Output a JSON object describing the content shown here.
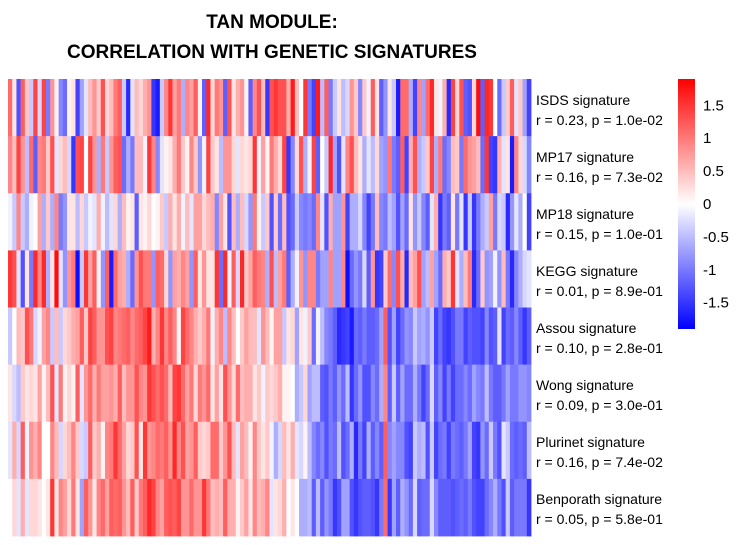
{
  "chart_data": {
    "type": "heatmap",
    "title_lines": [
      "TAN MODULE:",
      "CORRELATION WITH GENETIC SIGNATURES"
    ],
    "rows": [
      {
        "name": "ISDS signature",
        "stats": "r = 0.23, p = 1.0e-02"
      },
      {
        "name": "MP17 signature",
        "stats": "r = 0.16, p = 7.3e-02"
      },
      {
        "name": "MP18 signature",
        "stats": "r = 0.15, p = 1.0e-01"
      },
      {
        "name": "KEGG signature",
        "stats": "r = 0.01, p = 8.9e-01"
      },
      {
        "name": "Assou signature",
        "stats": "r = 0.10, p = 2.8e-01"
      },
      {
        "name": "Wong signature",
        "stats": "r = 0.09, p = 3.0e-01"
      },
      {
        "name": "Plurinet signature",
        "stats": "r = 0.16, p = 7.4e-02"
      },
      {
        "name": "Benporath signature",
        "stats": "r = 0.05, p = 5.8e-01"
      }
    ],
    "n_columns": 124,
    "color_scale": {
      "min": -1.9,
      "max": 1.9,
      "low": "#0000ff",
      "mid": "#ffffff",
      "high": "#ff0000",
      "ticks": [
        "1.5",
        "1",
        "0.5",
        "0",
        "-0.5",
        "-1",
        "-1.5"
      ],
      "tick_values": [
        1.5,
        1,
        0.5,
        0,
        -0.5,
        -1,
        -1.5
      ]
    },
    "values": [
      [
        1.1,
        0.2,
        -1.3,
        1.2,
        0.4,
        -0.4,
        1.4,
        -0.3,
        1.4,
        -1.0,
        0.8,
        0.1,
        -0.9,
        -1.1,
        0.1,
        0.2,
        -1.4,
        -0.7,
        -0.2,
        0.5,
        0.8,
        0.4,
        1.3,
        0.3,
        0.5,
        1.0,
        1.2,
        -0.4,
        -1.6,
        -0.2,
        0.5,
        0.3,
        0.6,
        0.8,
        -1.5,
        -1.7,
        -0.4,
        0.9,
        1.5,
        0.7,
        1.0,
        -0.6,
        0.9,
        0.7,
        1.2,
        0.1,
        -1.2,
        1.6,
        0.3,
        1.0,
        0.8,
        -1.2,
        1.3,
        0.2,
        0.6,
        0.8,
        0.1,
        -1.2,
        0.9,
        1.3,
        0.5,
        -1.5,
        1.3,
        1.5,
        1.3,
        1.3,
        0.6,
        1.7,
        0.5,
        0.0,
        1.5,
        -1.0,
        -1.4,
        1.7,
        -0.5,
        1.2,
        -1.0,
        -0.4,
        0.2,
        -0.5,
        -0.3,
        0.8,
        0.4,
        -0.9,
        0.4,
        -0.1,
        1.2,
        0.2,
        -1.2,
        -0.8,
        0.2,
        -0.4,
        -1.7,
        1.1,
        1.1,
        -0.6,
        -1.4,
        0.9,
        -0.7,
        1.1,
        1.6,
        0.2,
        -0.1,
        0.6,
        -1.6,
        1.4,
        0.3,
        1.3,
        -1.2,
        -1.3,
        0.3,
        1.8,
        -1.2,
        1.6,
        1.5,
        0.0,
        -1.1,
        -0.4,
        0.4,
        1.2,
        -0.2,
        0.4,
        -0.7,
        -1.4
      ],
      [
        0.9,
        0.5,
        1.4,
        0.8,
        -0.5,
        1.1,
        -1.2,
        0.9,
        1.0,
        0.4,
        1.3,
        -0.2,
        0.3,
        0.5,
        -0.3,
        -1.5,
        1.3,
        1.4,
        0.0,
        1.4,
        0.8,
        -0.6,
        1.0,
        -0.4,
        0.8,
        1.2,
        1.3,
        -1.1,
        -0.6,
        -1.0,
        0.5,
        0.5,
        -0.1,
        1.5,
        0.9,
        -0.9,
        -0.2,
        0.1,
        0.2,
        0.6,
        1.0,
        0.4,
        0.1,
        0.9,
        0.4,
        -0.8,
        -0.1,
        1.4,
        0.4,
        0.2,
        -0.5,
        0.8,
        0.8,
        0.3,
        -0.2,
        0.3,
        0.2,
        0.3,
        1.5,
        -0.1,
        0.7,
        0.1,
        1.0,
        0.6,
        0.3,
        1.4,
        -1.5,
        -0.9,
        0.3,
        1.3,
        -0.6,
        -0.1,
        1.4,
        -1.2,
        0.0,
        -0.4,
        1.6,
        -0.7,
        -1.3,
        -0.2,
        0.9,
        1.3,
        0.5,
        0.2,
        -0.6,
        -0.2,
        -0.5,
        0.3,
        -0.7,
        -0.8,
        1.0,
        -1.0,
        -1.2,
        1.2,
        -1.4,
        0.6,
        1.3,
        -0.6,
        -0.4,
        0.4,
        1.4,
        -0.6,
        1.0,
        -1.1,
        -0.9,
        0.5,
        0.4,
        -1.0,
        1.1,
        0.8,
        0.7,
        0.5,
        -1.1,
        1.5,
        -1.4,
        -1.5,
        0.6,
        -0.2,
        0.2,
        -1.7,
        0.9,
        0.3,
        -0.3,
        -0.9
      ],
      [
        -0.1,
        -0.4,
        0.9,
        -0.4,
        -0.6,
        -0.1,
        0.0,
        0.7,
        -0.6,
        0.4,
        -0.6,
        0.9,
        -1.0,
        -0.8,
        0.2,
        0.2,
        -0.5,
        0.3,
        -0.4,
        -0.1,
        -0.2,
        0.6,
        -0.1,
        -0.5,
        -0.2,
        0.3,
        -0.6,
        0.5,
        0.1,
        0.2,
        -1.2,
        0.2,
        0.1,
        0.3,
        0.0,
        0.1,
        0.4,
        -0.4,
        0.6,
        0.2,
        0.6,
        -0.1,
        0.5,
        -0.2,
        0.7,
        0.7,
        0.3,
        0.5,
        0.6,
        -0.9,
        0.7,
        0.2,
        -1.3,
        0.5,
        -0.6,
        0.5,
        -0.3,
        -0.8,
        1.0,
        0.1,
        -0.4,
        0.4,
        -1.3,
        0.4,
        -1.1,
        0.5,
        -1.3,
        -1.1,
        -0.4,
        -0.9,
        -1.0,
        -0.9,
        -1.1,
        0.9,
        -0.2,
        -1.3,
        0.6,
        -0.7,
        -0.7,
        0.8,
        -1.4,
        -0.6,
        -0.6,
        -0.3,
        -0.9,
        -1.4,
        -1.0,
        0.5,
        -0.9,
        -1.0,
        -0.5,
        -0.7,
        -1.3,
        -0.7,
        -1.1,
        0.2,
        -0.8,
        -0.4,
        -0.9,
        -1.2,
        -0.2,
        0.6,
        -1.5,
        -1.0,
        -1.2,
        0.2,
        -1.0,
        -0.2,
        -1.5,
        -0.4,
        -1.5,
        -1.0,
        -0.6,
        -0.4,
        0.7,
        -1.0,
        -0.3,
        -0.4,
        -1.6,
        -0.8,
        -0.2,
        -0.6,
        0.0,
        -1.4
      ],
      [
        1.5,
        1.3,
        -0.2,
        -1.3,
        0.2,
        -1.0,
        1.6,
        0.9,
        1.6,
        -0.6,
        0.2,
        1.8,
        -0.2,
        -0.8,
        0.8,
        1.0,
        -1.8,
        -0.4,
        1.5,
        0.7,
        1.2,
        0.1,
        -0.8,
        1.2,
        -1.7,
        1.1,
        0.7,
        0.6,
        -0.6,
        -1.1,
        0.8,
        1.3,
        1.0,
        1.0,
        -0.8,
        1.2,
        1.1,
        0.3,
        -0.8,
        0.7,
        0.6,
        0.9,
        0.7,
        -0.8,
        1.2,
        0.2,
        0.8,
        0.2,
        0.2,
        1.5,
        -1.1,
        1.6,
        -0.1,
        1.2,
        -0.3,
        1.6,
        0.4,
        0.7,
        1.2,
        1.0,
        0.9,
        -0.6,
        1.3,
        -0.5,
        0.7,
        1.0,
        -1.2,
        -0.6,
        -0.1,
        0.8,
        -0.8,
        0.9,
        0.9,
        -1.0,
        -0.7,
        -0.7,
        0.9,
        -0.7,
        -0.7,
        0.9,
        -1.8,
        -1.1,
        -0.8,
        -1.0,
        -0.3,
        -1.2,
        0.8,
        -1.5,
        -1.4,
        0.4,
        1.1,
        -0.9,
        1.3,
        0.6,
        -1.6,
        0.5,
        0.7,
        1.3,
        -0.7,
        -0.5,
        0.7,
        -0.7,
        -1.1,
        0.6,
        0.4,
        1.5,
        -0.2,
        -0.6,
        0.5,
        1.0,
        -1.6,
        -1.1,
        0.4,
        -0.8,
        -0.7,
        -0.1,
        -0.8,
        0.5,
        -1.0,
        -1.6,
        -0.9,
        -0.6,
        -0.3,
        -0.2
      ],
      [
        -0.4,
        0.0,
        0.5,
        0.4,
        1.3,
        1.0,
        -0.3,
        -0.1,
        0.7,
        0.9,
        -0.4,
        0.5,
        -0.4,
        0.3,
        0.4,
        0.6,
        0.7,
        1.2,
        0.4,
        1.4,
        1.2,
        0.8,
        0.8,
        1.3,
        1.4,
        0.9,
        1.0,
        1.1,
        1.2,
        0.9,
        1.1,
        1.2,
        1.4,
        1.7,
        0.6,
        0.9,
        1.5,
        0.9,
        1.2,
        0.9,
        0.1,
        1.4,
        1.1,
        0.9,
        0.6,
        0.4,
        0.6,
        1.0,
        -0.1,
        0.6,
        0.9,
        -0.5,
        0.9,
        0.5,
        0.0,
        0.4,
        0.7,
        0.5,
        0.5,
        -0.2,
        0.8,
        0.5,
        0.1,
        0.7,
        0.7,
        -0.4,
        0.2,
        0.3,
        -0.7,
        0.2,
        -0.1,
        0.4,
        -1.1,
        -0.1,
        -0.5,
        -0.9,
        -1.0,
        -1.2,
        -1.6,
        -1.5,
        -1.4,
        -1.7,
        -1.1,
        -1.2,
        -1.0,
        -1.2,
        -1.2,
        -1.1,
        -0.7,
        1.2,
        -1.3,
        -0.7,
        -1.4,
        -1.1,
        -0.8,
        -0.9,
        -0.4,
        -0.7,
        -0.6,
        -0.8,
        -0.4,
        -1.4,
        -1.1,
        -1.4,
        -1.5,
        -1.3,
        -1.0,
        -1.0,
        -1.4,
        -1.2,
        -1.3,
        -1.3,
        -1.4,
        -0.9,
        -1.3,
        -1.2,
        -0.2,
        -1.4,
        -1.1,
        -1.2,
        -0.9,
        -1.2,
        -1.5,
        -1.2
      ],
      [
        0.2,
        -0.3,
        -0.5,
        0.4,
        0.2,
        0.3,
        0.2,
        0.7,
        0.1,
        0.5,
        1.3,
        -0.2,
        1.0,
        0.1,
        0.3,
        0.1,
        1.2,
        -0.2,
        0.8,
        1.1,
        0.6,
        1.0,
        0.7,
        0.7,
        0.8,
        0.6,
        1.2,
        0.5,
        0.8,
        0.8,
        1.3,
        0.9,
        0.8,
        1.5,
        1.3,
        1.1,
        1.3,
        1.1,
        0.5,
        1.4,
        1.5,
        1.1,
        0.7,
        1.0,
        0.3,
        1.0,
        0.8,
        1.1,
        0.2,
        0.7,
        0.2,
        1.3,
        0.8,
        0.3,
        1.1,
        0.5,
        0.6,
        0.6,
        0.2,
        0.4,
        -0.1,
        0.4,
        0.3,
        0.4,
        0.6,
        0.1,
        0.1,
        0.0,
        -0.6,
        -0.4,
        0.3,
        -0.7,
        -0.5,
        -0.5,
        -1.2,
        -1.3,
        -1.0,
        -1.2,
        -0.8,
        -1.1,
        -0.5,
        -1.5,
        -1.1,
        -0.8,
        -1.3,
        -1.3,
        -0.9,
        -1.1,
        -0.6,
        0.9,
        -1.2,
        -0.4,
        -1.2,
        -0.7,
        -1.1,
        -1.1,
        -0.6,
        -1.0,
        -1.4,
        -1.1,
        -0.3,
        -1.2,
        -0.9,
        -1.4,
        -1.0,
        -1.4,
        -1.1,
        -1.1,
        -0.9,
        -1.1,
        -0.7,
        -0.9,
        -1.0,
        -0.5,
        -1.0,
        -1.2,
        -1.2,
        -1.0,
        -0.7,
        -1.0,
        -1.0,
        -0.8,
        -0.8,
        -0.9
      ],
      [
        -0.2,
        0.6,
        -0.3,
        1.2,
        -0.1,
        0.8,
        0.6,
        0.9,
        0.0,
        0.0,
        0.9,
        0.5,
        -0.3,
        0.3,
        0.5,
        0.9,
        0.4,
        -0.3,
        -0.4,
        1.2,
        0.4,
        0.6,
        0.1,
        0.9,
        1.0,
        1.5,
        1.1,
        0.7,
        0.3,
        0.4,
        1.3,
        0.2,
        1.5,
        0.8,
        0.9,
        1.1,
        1.0,
        1.2,
        0.8,
        1.6,
        0.9,
        1.3,
        0.7,
        0.8,
        1.2,
        0.4,
        0.3,
        0.4,
        1.1,
        1.1,
        0.4,
        0.8,
        1.3,
        0.5,
        -0.2,
        0.7,
        0.5,
        0.1,
        0.9,
        0.4,
        0.2,
        0.4,
        -0.1,
        -0.6,
        -0.3,
        0.5,
        0.2,
        0.6,
        -0.2,
        -0.3,
        0.1,
        -0.5,
        -0.9,
        -1.1,
        -0.9,
        -1.3,
        -1.0,
        -1.1,
        -0.5,
        -1.3,
        -1.1,
        -0.6,
        -1.6,
        -1.0,
        -1.4,
        -0.6,
        -1.2,
        -0.9,
        -1.2,
        1.2,
        -0.9,
        -0.7,
        -0.9,
        -0.9,
        -1.3,
        -1.4,
        -0.4,
        -0.6,
        -0.5,
        -1.3,
        -0.4,
        -1.4,
        -1.1,
        -1.0,
        -1.4,
        -1.0,
        -1.1,
        -1.2,
        -1.0,
        -0.7,
        -1.4,
        -1.5,
        -0.8,
        -1.1,
        -0.4,
        -1.0,
        -1.3,
        -0.2,
        -0.4,
        -1.1,
        -1.2,
        -1.1,
        -1.2,
        -0.5
      ],
      [
        0.0,
        0.3,
        -0.2,
        0.6,
        -0.2,
        0.3,
        0.3,
        0.2,
        0.0,
        0.2,
        1.5,
        0.2,
        0.9,
        0.7,
        0.3,
        1.0,
        0.2,
        -0.7,
        1.2,
        0.8,
        0.2,
        0.9,
        1.1,
        0.7,
        1.2,
        1.1,
        1.2,
        0.8,
        0.5,
        1.2,
        0.4,
        1.0,
        1.2,
        1.6,
        1.4,
        0.9,
        0.7,
        1.2,
        1.3,
        1.2,
        1.4,
        0.8,
        0.8,
        1.1,
        0.8,
        0.8,
        1.5,
        1.0,
        0.5,
        0.6,
        0.5,
        1.2,
        0.6,
        0.6,
        0.1,
        0.4,
        0.7,
        0.2,
        0.9,
        0.5,
        0.6,
        0.9,
        -0.2,
        0.2,
        0.3,
        0.6,
        0.0,
        0.2,
        0.0,
        -0.6,
        -0.6,
        -0.5,
        -1.2,
        -0.5,
        -1.2,
        -0.8,
        -1.0,
        -1.5,
        -1.3,
        -0.7,
        -0.7,
        -1.3,
        -1.5,
        -1.3,
        -1.2,
        -1.2,
        -1.3,
        -1.5,
        -1.0,
        1.1,
        -1.5,
        -0.7,
        -1.2,
        -0.6,
        -0.8,
        -1.1,
        -0.3,
        -1.2,
        -1.1,
        -1.1,
        -0.3,
        -0.9,
        -1.2,
        -1.2,
        -1.2,
        -1.3,
        -1.2,
        -1.1,
        -1.2,
        -1.0,
        -1.3,
        -1.4,
        -1.4,
        -1.1,
        -0.9,
        -0.6,
        -1.0,
        -1.3,
        -0.4,
        -1.2,
        -1.0,
        -1.0,
        -1.0,
        -1.5
      ]
    ]
  }
}
